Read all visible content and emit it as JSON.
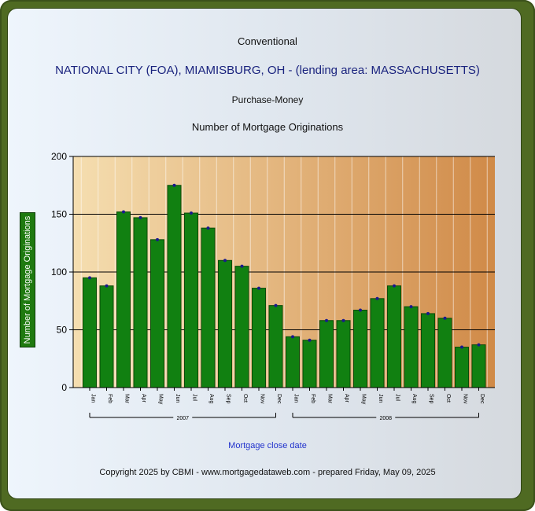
{
  "header": {
    "title": "Conventional",
    "lender": "NATIONAL CITY (FOA), MIAMISBURG, OH - (lending area:   MASSACHUSETTS)",
    "loan_purpose": "Purchase-Money",
    "chart_title": "Number of Mortgage Originations"
  },
  "footer": {
    "xaxis_caption": "Mortgage close date",
    "copyright": "Copyright 2025 by CBMI - www.mortgagedataweb.com - prepared Friday, May 09, 2025"
  },
  "colors": {
    "bar_fill": "#118011",
    "bar_stroke": "#0a4a0a",
    "marker": "#1a1a8c",
    "plot_bg_left": "#f5deb0",
    "plot_bg_right": "#d08a48",
    "title_blue": "#1a237e",
    "caption_blue": "#2233cc"
  },
  "chart_data": {
    "type": "bar",
    "ylabel": "Number of Mortgage Originations",
    "ylim": [
      0,
      200
    ],
    "yticks": [
      0,
      50,
      100,
      150,
      200
    ],
    "grid": true,
    "categories": [
      "Jan",
      "Feb",
      "Mar",
      "Apr",
      "May",
      "Jun",
      "Jul",
      "Aug",
      "Sep",
      "Oct",
      "Nov",
      "Dec",
      "Jan",
      "Feb",
      "Mar",
      "Apr",
      "May",
      "Jun",
      "Jul",
      "Aug",
      "Sep",
      "Oct",
      "Nov",
      "Dec"
    ],
    "values": [
      95,
      88,
      152,
      147,
      128,
      175,
      151,
      138,
      110,
      105,
      86,
      71,
      44,
      41,
      58,
      58,
      67,
      77,
      88,
      70,
      64,
      60,
      35,
      37
    ],
    "groups": [
      {
        "label": "2007",
        "start": 0,
        "end": 11
      },
      {
        "label": "2008",
        "start": 12,
        "end": 23
      }
    ]
  }
}
